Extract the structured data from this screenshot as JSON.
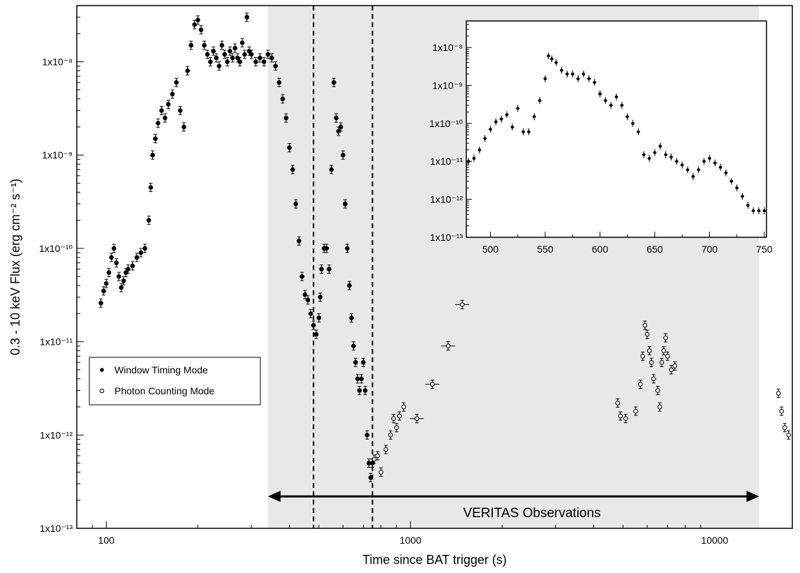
{
  "chart_data": {
    "type": "scatter",
    "title": "",
    "xlabel": "Time since BAT trigger (s)",
    "ylabel": "0.3 - 10 keV Flux (erg cm⁻² s⁻¹)",
    "xscale": "log",
    "yscale": "log",
    "xlim": [
      80,
      18000
    ],
    "ylim": [
      1e-13,
      4e-08
    ],
    "x_ticks": [
      {
        "value": 100,
        "label": "100"
      },
      {
        "value": 1000,
        "label": "1000"
      },
      {
        "value": 10000,
        "label": "10000"
      }
    ],
    "y_ticks": [
      {
        "value": 1e-13,
        "label": "1x10⁻¹³"
      },
      {
        "value": 1e-12,
        "label": "1x10⁻¹²"
      },
      {
        "value": 1e-11,
        "label": "1x10⁻¹¹"
      },
      {
        "value": 1e-10,
        "label": "1x10⁻¹⁰"
      },
      {
        "value": 1e-09,
        "label": "1x10⁻⁹"
      },
      {
        "value": 1e-08,
        "label": "1x10⁻⁸"
      }
    ],
    "grid": false,
    "legend_position": "bottom-left",
    "shaded_region": {
      "x": [
        340,
        14000
      ],
      "color": "#e8e8e8"
    },
    "vlines": [
      480,
      750
    ],
    "annotation": {
      "text": "VERITAS Observations",
      "arrow_from": 340,
      "arrow_to": 14000,
      "y": 2.2e-13
    },
    "series": [
      {
        "name": "Window Timing Mode",
        "marker": "filled-circle",
        "points": [
          [
            96,
            2.6e-11
          ],
          [
            98,
            3.5e-11
          ],
          [
            100,
            4.2e-11
          ],
          [
            102,
            5.5e-11
          ],
          [
            104,
            8e-11
          ],
          [
            106,
            1e-10
          ],
          [
            108,
            7e-11
          ],
          [
            110,
            5e-11
          ],
          [
            112,
            3.8e-11
          ],
          [
            114,
            4.5e-11
          ],
          [
            116,
            5.5e-11
          ],
          [
            118,
            6e-11
          ],
          [
            122,
            6.5e-11
          ],
          [
            126,
            8e-11
          ],
          [
            130,
            9e-11
          ],
          [
            134,
            1e-10
          ],
          [
            138,
            2e-10
          ],
          [
            140,
            4.5e-10
          ],
          [
            142,
            1e-09
          ],
          [
            145,
            1.5e-09
          ],
          [
            148,
            2.2e-09
          ],
          [
            152,
            3e-09
          ],
          [
            156,
            2.5e-09
          ],
          [
            160,
            3.5e-09
          ],
          [
            165,
            4.5e-09
          ],
          [
            170,
            6e-09
          ],
          [
            175,
            3e-09
          ],
          [
            180,
            2e-09
          ],
          [
            185,
            8e-09
          ],
          [
            190,
            1.5e-08
          ],
          [
            195,
            2.5e-08
          ],
          [
            200,
            2.8e-08
          ],
          [
            205,
            2.2e-08
          ],
          [
            210,
            1.5e-08
          ],
          [
            215,
            1.2e-08
          ],
          [
            220,
            1e-08
          ],
          [
            225,
            1.3e-08
          ],
          [
            230,
            1.1e-08
          ],
          [
            235,
            9e-09
          ],
          [
            240,
            1.5e-08
          ],
          [
            245,
            1.2e-08
          ],
          [
            250,
            1e-08
          ],
          [
            255,
            1.3e-08
          ],
          [
            260,
            1.1e-08
          ],
          [
            265,
            1.4e-08
          ],
          [
            270,
            1.1e-08
          ],
          [
            275,
            1e-08
          ],
          [
            280,
            1.6e-08
          ],
          [
            285,
            1.2e-08
          ],
          [
            290,
            3e-08
          ],
          [
            295,
            1.3e-08
          ],
          [
            300,
            1.2e-08
          ],
          [
            310,
            1e-08
          ],
          [
            320,
            1.1e-08
          ],
          [
            330,
            1e-08
          ],
          [
            340,
            1.2e-08
          ],
          [
            350,
            1.1e-08
          ],
          [
            360,
            9e-09
          ],
          [
            370,
            6e-09
          ],
          [
            380,
            4e-09
          ],
          [
            390,
            2.5e-09
          ],
          [
            400,
            1.2e-09
          ],
          [
            410,
            7e-10
          ],
          [
            420,
            3e-10
          ],
          [
            430,
            1.2e-10
          ],
          [
            440,
            5e-11
          ],
          [
            450,
            3.2e-11
          ],
          [
            460,
            2.8e-11
          ],
          [
            470,
            2e-11
          ],
          [
            480,
            1.5e-11
          ],
          [
            490,
            1.2e-11
          ],
          [
            500,
            1.8e-11
          ],
          [
            505,
            3e-11
          ],
          [
            510,
            6e-11
          ],
          [
            520,
            1e-10
          ],
          [
            530,
            1e-10
          ],
          [
            540,
            6e-11
          ],
          [
            550,
            7e-10
          ],
          [
            560,
            6e-09
          ],
          [
            570,
            2.5e-09
          ],
          [
            580,
            1.8e-09
          ],
          [
            590,
            2e-09
          ],
          [
            600,
            1e-09
          ],
          [
            610,
            3e-10
          ],
          [
            620,
            1e-10
          ],
          [
            630,
            4e-11
          ],
          [
            640,
            1.8e-11
          ],
          [
            650,
            9e-12
          ],
          [
            660,
            6e-12
          ],
          [
            670,
            4e-12
          ],
          [
            680,
            3e-12
          ],
          [
            690,
            4e-12
          ],
          [
            700,
            6e-12
          ],
          [
            710,
            3e-12
          ],
          [
            720,
            1e-12
          ],
          [
            730,
            5e-13
          ],
          [
            740,
            3.5e-13
          ],
          [
            750,
            5e-13
          ]
        ]
      },
      {
        "name": "Photon Counting Mode",
        "marker": "open-circle",
        "points": [
          [
            760,
            5.5e-13
          ],
          [
            780,
            6e-13
          ],
          [
            800,
            4e-13
          ],
          [
            830,
            7e-13
          ],
          [
            860,
            1e-12
          ],
          [
            880,
            1.5e-12
          ],
          [
            900,
            1.2e-12
          ],
          [
            920,
            1.6e-12
          ],
          [
            950,
            2e-12
          ],
          [
            1050,
            1.5e-12
          ],
          [
            1180,
            3.5e-12
          ],
          [
            1330,
            9e-12
          ],
          [
            1480,
            2.5e-11
          ],
          [
            4800,
            2.2e-12
          ],
          [
            4900,
            1.6e-12
          ],
          [
            5100,
            1.5e-12
          ],
          [
            5500,
            1.8e-12
          ],
          [
            5700,
            3.5e-12
          ],
          [
            5800,
            7e-12
          ],
          [
            5900,
            1.5e-11
          ],
          [
            6000,
            1.2e-11
          ],
          [
            6100,
            8e-12
          ],
          [
            6200,
            6e-12
          ],
          [
            6300,
            4e-12
          ],
          [
            6500,
            3e-12
          ],
          [
            6600,
            2e-12
          ],
          [
            6700,
            6e-12
          ],
          [
            6800,
            8e-12
          ],
          [
            6900,
            1.1e-11
          ],
          [
            7000,
            7e-12
          ],
          [
            7200,
            5e-12
          ],
          [
            7400,
            5.5e-12
          ],
          [
            16200,
            2.8e-12
          ],
          [
            16600,
            1.8e-12
          ],
          [
            17000,
            1.2e-12
          ],
          [
            17500,
            1e-12
          ]
        ]
      }
    ],
    "inset": {
      "type": "scatter",
      "xscale": "linear",
      "yscale": "log",
      "xlim": [
        478,
        752
      ],
      "ylim": [
        1e-13,
        5e-08
      ],
      "x_ticks": [
        {
          "value": 500,
          "label": "500"
        },
        {
          "value": 550,
          "label": "550"
        },
        {
          "value": 600,
          "label": "600"
        },
        {
          "value": 650,
          "label": "650"
        },
        {
          "value": 700,
          "label": "700"
        },
        {
          "value": 750,
          "label": "750"
        }
      ],
      "y_ticks": [
        {
          "value": 1e-13,
          "label": "1x10⁻¹³"
        },
        {
          "value": 1e-12,
          "label": "1x10⁻¹²"
        },
        {
          "value": 1e-11,
          "label": "1x10⁻¹¹"
        },
        {
          "value": 1e-10,
          "label": "1x10⁻¹⁰"
        },
        {
          "value": 1e-09,
          "label": "1x10⁻⁹"
        },
        {
          "value": 1e-08,
          "label": "1x10⁻⁸"
        }
      ],
      "points": [
        [
          480,
          1e-11
        ],
        [
          485,
          1.2e-11
        ],
        [
          490,
          2e-11
        ],
        [
          495,
          4e-11
        ],
        [
          500,
          7e-11
        ],
        [
          505,
          1.1e-10
        ],
        [
          510,
          1.3e-10
        ],
        [
          515,
          1.7e-10
        ],
        [
          520,
          8e-11
        ],
        [
          525,
          2.5e-10
        ],
        [
          530,
          6e-11
        ],
        [
          535,
          6e-11
        ],
        [
          540,
          1.5e-10
        ],
        [
          545,
          4e-10
        ],
        [
          550,
          1.5e-09
        ],
        [
          553,
          6e-09
        ],
        [
          556,
          5e-09
        ],
        [
          560,
          4e-09
        ],
        [
          565,
          2.5e-09
        ],
        [
          570,
          2e-09
        ],
        [
          575,
          2e-09
        ],
        [
          580,
          1.5e-09
        ],
        [
          585,
          2e-09
        ],
        [
          590,
          1.5e-09
        ],
        [
          595,
          1.2e-09
        ],
        [
          600,
          6e-10
        ],
        [
          605,
          4e-10
        ],
        [
          610,
          3e-10
        ],
        [
          615,
          5e-10
        ],
        [
          620,
          3e-10
        ],
        [
          625,
          1.5e-10
        ],
        [
          630,
          1e-10
        ],
        [
          635,
          6e-11
        ],
        [
          640,
          1.5e-11
        ],
        [
          645,
          1.2e-11
        ],
        [
          650,
          1.7e-11
        ],
        [
          655,
          2.5e-11
        ],
        [
          660,
          1.5e-11
        ],
        [
          665,
          1.3e-11
        ],
        [
          670,
          1e-11
        ],
        [
          675,
          8e-12
        ],
        [
          680,
          6e-12
        ],
        [
          685,
          4e-12
        ],
        [
          690,
          6e-12
        ],
        [
          695,
          1e-11
        ],
        [
          700,
          1.2e-11
        ],
        [
          705,
          9e-12
        ],
        [
          710,
          7e-12
        ],
        [
          715,
          5e-12
        ],
        [
          720,
          3e-12
        ],
        [
          725,
          2e-12
        ],
        [
          730,
          1.2e-12
        ],
        [
          735,
          7e-13
        ],
        [
          740,
          5e-13
        ],
        [
          745,
          5e-13
        ],
        [
          750,
          5e-13
        ]
      ]
    }
  }
}
